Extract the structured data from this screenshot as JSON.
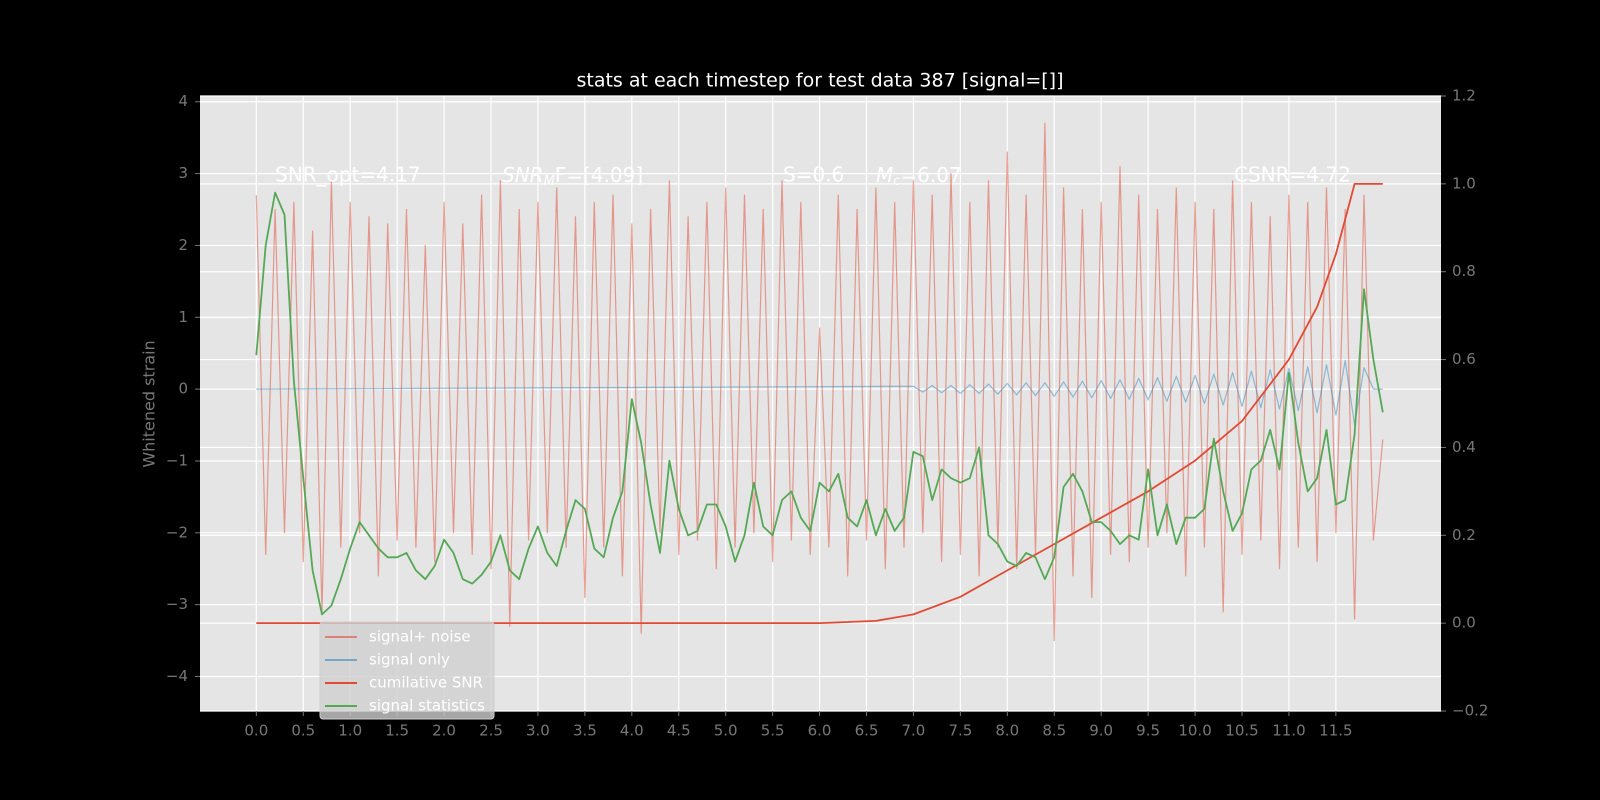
{
  "chart_data": {
    "type": "line",
    "title": "stats at each timestep for test data 387 [signal=[]]",
    "y_label": "Whitened strain",
    "xlim": [
      -0.6,
      12.62
    ],
    "ylim": [
      -4.48,
      4.08
    ],
    "y2lim": [
      -0.2,
      1.2
    ],
    "grid": true,
    "legend": "lower left",
    "xticks": [
      {
        "value": 0,
        "label": "0.0"
      },
      {
        "value": 0.5,
        "label": "0.5"
      },
      {
        "value": 1,
        "label": "1.0"
      },
      {
        "value": 1.5,
        "label": "1.5"
      },
      {
        "value": 2,
        "label": "2.0"
      },
      {
        "value": 2.5,
        "label": "2.5"
      },
      {
        "value": 3,
        "label": "3.0"
      },
      {
        "value": 3.5,
        "label": "3.5"
      },
      {
        "value": 4,
        "label": "4.0"
      },
      {
        "value": 4.5,
        "label": "4.5"
      },
      {
        "value": 5,
        "label": "5.0"
      },
      {
        "value": 5.5,
        "label": "5.5"
      },
      {
        "value": 6,
        "label": "6.0"
      },
      {
        "value": 6.5,
        "label": "6.5"
      },
      {
        "value": 7,
        "label": "7.0"
      },
      {
        "value": 7.5,
        "label": "7.5"
      },
      {
        "value": 8,
        "label": "8.0"
      },
      {
        "value": 8.5,
        "label": "8.5"
      },
      {
        "value": 9,
        "label": "9.0"
      },
      {
        "value": 9.5,
        "label": "9.5"
      },
      {
        "value": 10,
        "label": "10.0"
      },
      {
        "value": 10.5,
        "label": "10.5"
      },
      {
        "value": 11,
        "label": "11.0"
      },
      {
        "value": 11.5,
        "label": "11.5"
      }
    ],
    "yticks": [
      {
        "value": -4,
        "label": "−4"
      },
      {
        "value": -3,
        "label": "−3"
      },
      {
        "value": -2,
        "label": "−2"
      },
      {
        "value": -1,
        "label": "−1"
      },
      0,
      1,
      2,
      3,
      4
    ],
    "y2ticks": [
      {
        "value": -0.2,
        "label": "−0.2"
      },
      {
        "value": 0,
        "label": "0.0"
      },
      {
        "value": 0.2,
        "label": "0.2"
      },
      {
        "value": 0.4,
        "label": "0.4"
      },
      {
        "value": 0.6,
        "label": "0.6"
      },
      {
        "value": 0.8,
        "label": "0.8"
      },
      {
        "value": 1,
        "label": "1.0"
      },
      {
        "value": 1.2,
        "label": "1.2"
      }
    ],
    "annotations": [
      {
        "text": "SNR_opt=4.17"
      },
      {
        "base": "SNR",
        "sub": "M",
        "tail": "F=[4.09]"
      },
      {
        "text": "S=0.6"
      },
      {
        "base": "M",
        "sub": "c",
        "tail": "=6.07"
      },
      {
        "text": "CSNR=4.72"
      }
    ],
    "series": [
      {
        "name": "signal+ noise",
        "color": "#e24a33",
        "opacity": 0.5,
        "axis": "y",
        "x": [
          0,
          0.1,
          0.2,
          0.3,
          0.4,
          0.5,
          0.6,
          0.7,
          0.8,
          0.9,
          1,
          1.1,
          1.2,
          1.3,
          1.4,
          1.5,
          1.6,
          1.7,
          1.8,
          1.9,
          2,
          2.1,
          2.2,
          2.3,
          2.4,
          2.5,
          2.6,
          2.7,
          2.8,
          2.9,
          3,
          3.1,
          3.2,
          3.3,
          3.4,
          3.5,
          3.6,
          3.7,
          3.8,
          3.9,
          4,
          4.1,
          4.2,
          4.3,
          4.4,
          4.5,
          4.6,
          4.7,
          4.8,
          4.9,
          5,
          5.1,
          5.2,
          5.3,
          5.4,
          5.5,
          5.6,
          5.7,
          5.8,
          5.9,
          6,
          6.1,
          6.2,
          6.3,
          6.4,
          6.5,
          6.6,
          6.7,
          6.8,
          6.9,
          7,
          7.1,
          7.2,
          7.3,
          7.4,
          7.5,
          7.6,
          7.7,
          7.8,
          7.9,
          8,
          8.1,
          8.2,
          8.3,
          8.4,
          8.5,
          8.6,
          8.7,
          8.8,
          8.9,
          9,
          9.1,
          9.2,
          9.3,
          9.4,
          9.5,
          9.6,
          9.7,
          9.8,
          9.9,
          10,
          10.1,
          10.2,
          10.3,
          10.4,
          10.5,
          10.6,
          10.7,
          10.8,
          10.9,
          11,
          11.1,
          11.2,
          11.3,
          11.4,
          11.5,
          11.6,
          11.7,
          11.8,
          11.9,
          12
        ],
        "values": [
          2.7,
          -2.3,
          2.5,
          -2.0,
          2.6,
          -2.4,
          2.2,
          -3.1,
          2.9,
          -2.2,
          2.6,
          -2.0,
          2.4,
          -2.6,
          2.3,
          -2.1,
          2.5,
          -2.2,
          2.0,
          -2.4,
          2.6,
          -2.0,
          2.3,
          -2.3,
          2.7,
          -2.5,
          2.9,
          -3.3,
          2.5,
          -2.1,
          2.6,
          -2.0,
          2.8,
          -2.2,
          2.4,
          -2.9,
          2.6,
          -2.2,
          2.7,
          -2.6,
          2.3,
          -3.4,
          2.5,
          -2.0,
          2.9,
          -2.3,
          2.4,
          -2.1,
          2.6,
          -2.5,
          2.8,
          -2.2,
          2.7,
          -2.0,
          2.5,
          -2.4,
          2.9,
          -2.1,
          2.6,
          -2.3,
          0.85,
          -2.2,
          2.7,
          -2.6,
          2.5,
          -2.1,
          2.8,
          -2.5,
          2.6,
          -2.2,
          2.9,
          -2.0,
          2.7,
          -2.4,
          3.0,
          -2.3,
          2.6,
          -2.6,
          2.9,
          -2.2,
          3.3,
          -2.5,
          2.7,
          -2.3,
          3.7,
          -3.5,
          2.8,
          -2.6,
          2.5,
          -2.9,
          2.6,
          -2.3,
          3.1,
          -2.4,
          2.7,
          -2.2,
          2.5,
          -2.0,
          2.8,
          -2.6,
          2.6,
          -2.2,
          2.5,
          -3.1,
          2.9,
          -2.3,
          2.6,
          -2.1,
          2.4,
          -2.5,
          2.7,
          -2.2,
          2.6,
          -2.4,
          2.8,
          -2.0,
          2.5,
          -3.2,
          2.7,
          -2.1,
          -0.7
        ]
      },
      {
        "name": "signal only",
        "color": "#348abd",
        "opacity": 0.5,
        "axis": "y",
        "x": [
          0,
          7,
          7.1,
          7.2,
          7.3,
          7.4,
          7.5,
          7.6,
          7.7,
          7.8,
          7.9,
          8,
          8.1,
          8.2,
          8.3,
          8.4,
          8.5,
          8.6,
          8.7,
          8.8,
          8.9,
          9,
          9.1,
          9.2,
          9.3,
          9.4,
          9.5,
          9.6,
          9.7,
          9.8,
          9.9,
          10,
          10.1,
          10.2,
          10.3,
          10.4,
          10.5,
          10.6,
          10.7,
          10.8,
          10.9,
          11,
          11.1,
          11.2,
          11.3,
          11.4,
          11.5,
          11.6,
          11.7,
          11.8,
          11.9,
          12
        ],
        "values": [
          0,
          0.04,
          -0.04,
          0.05,
          -0.05,
          0.05,
          -0.06,
          0.06,
          -0.06,
          0.07,
          -0.07,
          0.08,
          -0.08,
          0.09,
          -0.09,
          0.09,
          -0.1,
          0.1,
          -0.11,
          0.11,
          -0.12,
          0.12,
          -0.13,
          0.13,
          -0.14,
          0.15,
          -0.15,
          0.16,
          -0.17,
          0.18,
          -0.18,
          0.19,
          -0.2,
          0.21,
          -0.22,
          0.23,
          -0.24,
          0.25,
          -0.26,
          0.27,
          -0.28,
          0.29,
          -0.3,
          0.31,
          -0.33,
          0.34,
          -0.36,
          0.4,
          -0.5,
          0.3,
          0,
          0
        ]
      },
      {
        "name": "cumilative SNR",
        "color": "#e24a33",
        "opacity": 1,
        "axis": "y2",
        "x": [
          0,
          6,
          6.6,
          7,
          7.5,
          8,
          8.5,
          9,
          9.5,
          10,
          10.5,
          11,
          11.3,
          11.5,
          11.7,
          12
        ],
        "values": [
          0,
          0,
          0.005,
          0.02,
          0.06,
          0.12,
          0.18,
          0.24,
          0.3,
          0.37,
          0.46,
          0.6,
          0.72,
          0.84,
          1,
          1
        ]
      },
      {
        "name": "signal statistics",
        "color": "#55a855",
        "opacity": 1,
        "axis": "y2",
        "x": [
          0,
          0.1,
          0.2,
          0.3,
          0.4,
          0.5,
          0.6,
          0.7,
          0.8,
          0.9,
          1,
          1.1,
          1.2,
          1.3,
          1.4,
          1.5,
          1.6,
          1.7,
          1.8,
          1.9,
          2,
          2.1,
          2.2,
          2.3,
          2.4,
          2.5,
          2.6,
          2.7,
          2.8,
          2.9,
          3,
          3.1,
          3.2,
          3.3,
          3.4,
          3.5,
          3.6,
          3.7,
          3.8,
          3.9,
          4,
          4.1,
          4.2,
          4.3,
          4.4,
          4.5,
          4.6,
          4.7,
          4.8,
          4.9,
          5,
          5.1,
          5.2,
          5.3,
          5.4,
          5.5,
          5.6,
          5.7,
          5.8,
          5.9,
          6,
          6.1,
          6.2,
          6.3,
          6.4,
          6.5,
          6.6,
          6.7,
          6.8,
          6.9,
          7,
          7.1,
          7.2,
          7.3,
          7.4,
          7.5,
          7.6,
          7.7,
          7.8,
          7.9,
          8,
          8.1,
          8.2,
          8.3,
          8.4,
          8.5,
          8.6,
          8.7,
          8.8,
          8.9,
          9,
          9.1,
          9.2,
          9.3,
          9.4,
          9.5,
          9.6,
          9.7,
          9.8,
          9.9,
          10,
          10.1,
          10.2,
          10.3,
          10.4,
          10.5,
          10.6,
          10.7,
          10.8,
          10.9,
          11,
          11.1,
          11.2,
          11.3,
          11.4,
          11.5,
          11.6,
          11.7,
          11.8,
          11.9,
          12
        ],
        "values": [
          0.61,
          0.86,
          0.98,
          0.93,
          0.55,
          0.33,
          0.12,
          0.02,
          0.04,
          0.1,
          0.17,
          0.23,
          0.2,
          0.17,
          0.15,
          0.15,
          0.16,
          0.12,
          0.1,
          0.13,
          0.19,
          0.16,
          0.1,
          0.09,
          0.11,
          0.14,
          0.2,
          0.12,
          0.1,
          0.17,
          0.22,
          0.16,
          0.13,
          0.21,
          0.28,
          0.26,
          0.17,
          0.15,
          0.24,
          0.3,
          0.51,
          0.41,
          0.27,
          0.16,
          0.37,
          0.26,
          0.2,
          0.21,
          0.27,
          0.27,
          0.22,
          0.14,
          0.2,
          0.32,
          0.22,
          0.2,
          0.28,
          0.3,
          0.24,
          0.21,
          0.32,
          0.3,
          0.34,
          0.24,
          0.22,
          0.28,
          0.2,
          0.26,
          0.21,
          0.24,
          0.39,
          0.38,
          0.28,
          0.35,
          0.33,
          0.32,
          0.33,
          0.4,
          0.2,
          0.18,
          0.14,
          0.13,
          0.16,
          0.15,
          0.1,
          0.15,
          0.31,
          0.34,
          0.3,
          0.23,
          0.23,
          0.21,
          0.18,
          0.2,
          0.19,
          0.35,
          0.2,
          0.27,
          0.18,
          0.24,
          0.24,
          0.26,
          0.42,
          0.3,
          0.21,
          0.25,
          0.35,
          0.37,
          0.44,
          0.35,
          0.57,
          0.41,
          0.3,
          0.33,
          0.44,
          0.27,
          0.28,
          0.43,
          0.76,
          0.6,
          0.48
        ]
      }
    ]
  }
}
